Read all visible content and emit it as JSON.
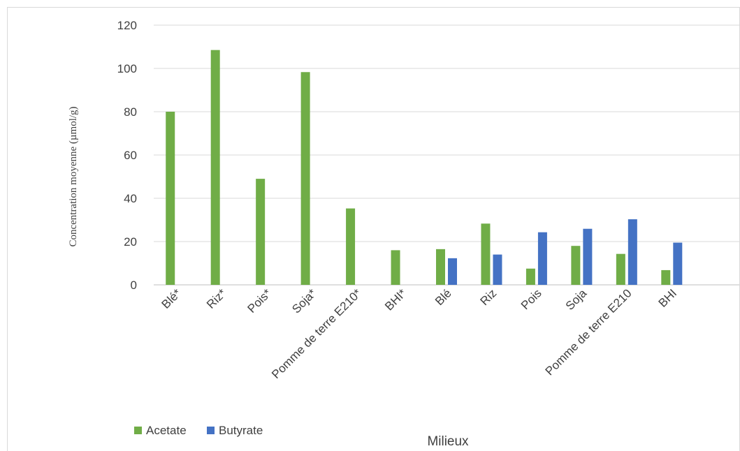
{
  "chart_data": {
    "type": "bar",
    "categories": [
      "Blé*",
      "Riz*",
      "Pois*",
      "Soja*",
      "Pomme de terre E210*",
      "BHI*",
      "Blé",
      "Riz",
      "Pois",
      "Soja",
      "Pomme de terre E210",
      "BHI",
      ""
    ],
    "series": [
      {
        "name": "Acetate",
        "color": "#70ad47",
        "values": [
          80,
          108.5,
          49,
          98.3,
          35.3,
          16,
          16.5,
          28.3,
          7.5,
          18,
          14.3,
          6.8,
          null
        ]
      },
      {
        "name": "Butyrate",
        "color": "#4472c4",
        "values": [
          null,
          null,
          null,
          null,
          null,
          null,
          12.3,
          14,
          24.3,
          25.9,
          30.3,
          19.5,
          null
        ]
      }
    ],
    "ylim": [
      0,
      120
    ],
    "yticks": [
      0,
      20,
      40,
      60,
      80,
      100,
      120
    ],
    "xlabel": "Milieux",
    "ylabel": "Concentration moyenne (µmol/g)",
    "grid": true,
    "legend": "bottom-left"
  }
}
